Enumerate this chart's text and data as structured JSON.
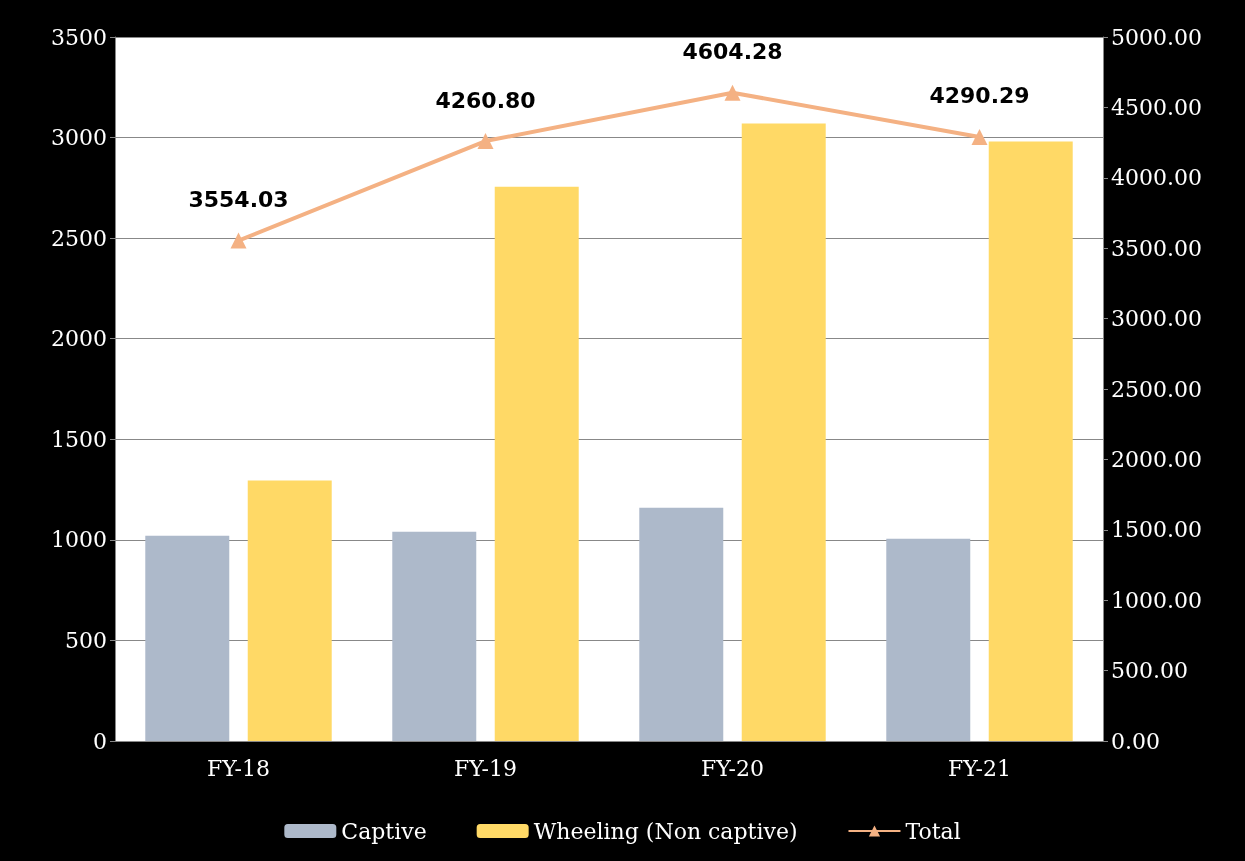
{
  "chart_data": {
    "type": "bar",
    "categories": [
      "FY-18",
      "FY-19",
      "FY-20",
      "FY-21"
    ],
    "series": [
      {
        "name": "Captive",
        "color": "#adb9ca",
        "values": [
          1020,
          1040,
          1160,
          1005
        ]
      },
      {
        "name": "Wheeling (Non captive)",
        "color": "#ffd966",
        "values": [
          1295,
          2755,
          3070,
          2980
        ]
      },
      {
        "name": "Total",
        "type": "line",
        "axis": "y2",
        "color": "#f4b183",
        "marker": "triangle",
        "values": [
          3554.03,
          4260.8,
          4604.28,
          4290.29
        ],
        "value_labels": [
          "3554.03",
          "4260.80",
          "4604.28",
          "4290.29"
        ]
      }
    ],
    "ylim": [
      0,
      3500
    ],
    "yticks": [
      0,
      500,
      1000,
      1500,
      2000,
      2500,
      3000,
      3500
    ],
    "y2lim": [
      0,
      5000
    ],
    "y2ticks": [
      {
        "value": 0,
        "label": "0.00"
      },
      {
        "value": 500,
        "label": "500.00"
      },
      {
        "value": 1000,
        "label": "1000.00"
      },
      {
        "value": 1500,
        "label": "1500.00"
      },
      {
        "value": 2000,
        "label": "2000.00"
      },
      {
        "value": 2500,
        "label": "2500.00"
      },
      {
        "value": 3000,
        "label": "3000.00"
      },
      {
        "value": 3500,
        "label": "3500.00"
      },
      {
        "value": 4000,
        "label": "4000.00"
      },
      {
        "value": 4500,
        "label": "4500.00"
      },
      {
        "value": 5000,
        "label": "5000.00"
      }
    ],
    "grid": "y",
    "legend": "bottom"
  }
}
